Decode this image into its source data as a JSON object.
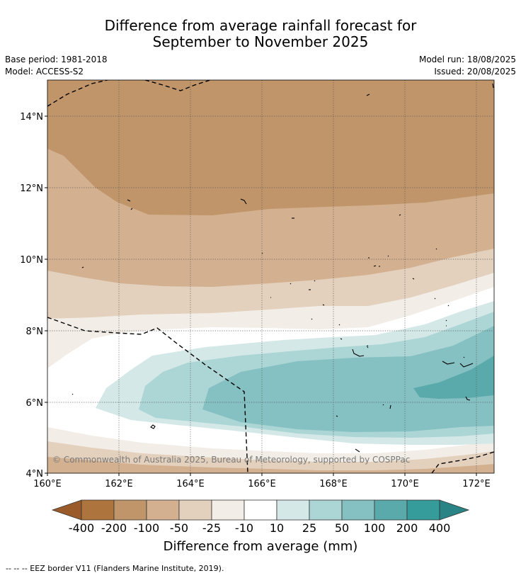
{
  "title_line1": "Difference from average rainfall forecast for",
  "title_line2": "September to November 2025",
  "base_period": "Base period: 1981-2018",
  "model": "Model: ACCESS-S2",
  "model_run": "Model run: 18/08/2025",
  "issued": "Issued: 20/08/2025",
  "copyright": "© Commonwealth of Australia 2025, Bureau of Meteorology, supported by COSPPac",
  "footnote": "-- -- -- EEZ border V11 (Flanders Marine Institute, 2019).",
  "map": {
    "lon_range": [
      160.0,
      172.5
    ],
    "lat_range": [
      4.0,
      15.0
    ],
    "lon_ticks": [
      "160°E",
      "162°E",
      "164°E",
      "166°E",
      "168°E",
      "170°E",
      "172°E"
    ],
    "lat_ticks": [
      "4°N",
      "6°N",
      "8°N",
      "10°N",
      "12°N",
      "14°N"
    ],
    "gridlines": "dotted"
  },
  "colorbar": {
    "title": "Difference from average (mm)",
    "labels": [
      "-400",
      "-200",
      "-100",
      "-50",
      "-25",
      "-10",
      "10",
      "25",
      "50",
      "100",
      "200",
      "400"
    ],
    "colors": {
      "lt_-400": "#9a5a2a",
      "-400_-200": "#ad743d",
      "-200_-100": "#c0956a",
      "-100_-50": "#d2b090",
      "-50_-25": "#e3d0bd",
      "-25_-10": "#f2ede6",
      "-10_10": "#ffffff",
      "10_25": "#d4e8e7",
      "25_50": "#acd5d5",
      "50_100": "#85c1c2",
      "100_200": "#5aaaac",
      "200_400": "#359b9b",
      "gt_400": "#2a8485"
    }
  }
}
